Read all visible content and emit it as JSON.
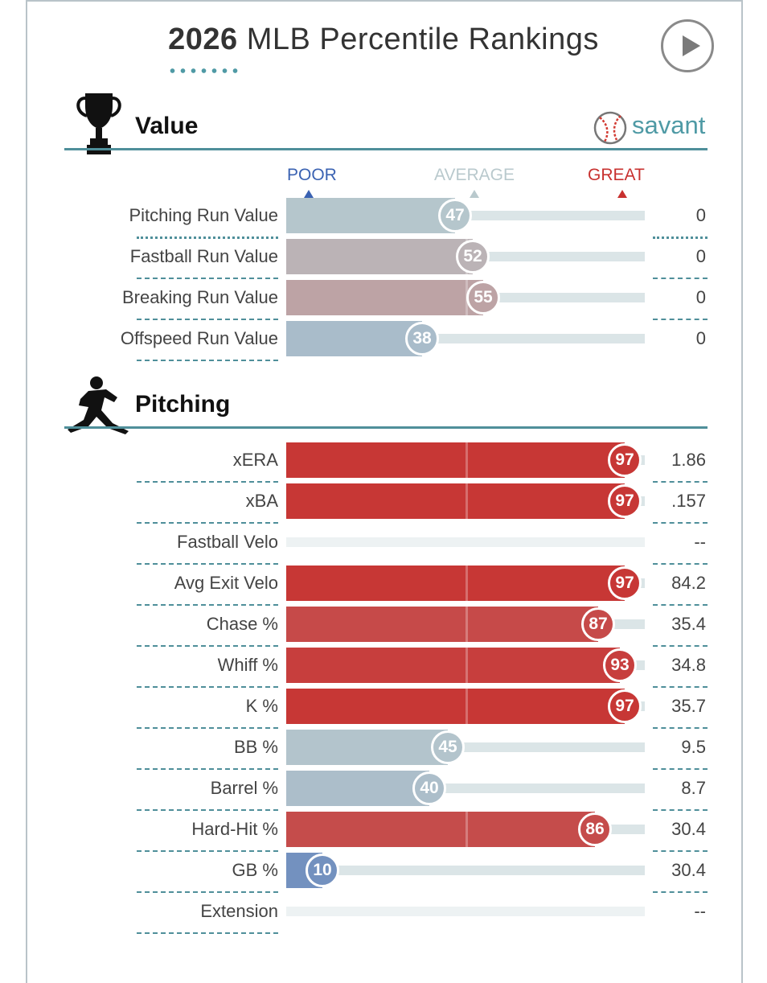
{
  "header": {
    "title_year": "2026",
    "title_rest": "MLB Percentile Rankings",
    "play_icon": "play-icon",
    "brand": "savant"
  },
  "scale": {
    "poor": "POOR",
    "average": "AVERAGE",
    "great": "GREAT"
  },
  "colors": {
    "poor": "#3b63b4",
    "average": "#b9c9cd",
    "great": "#c8312f",
    "accent": "#4f8f9a"
  },
  "chart_data": [
    {
      "type": "bar",
      "title": "Value",
      "xlim": [
        0,
        100
      ],
      "categories": [
        "Pitching Run Value",
        "Fastball Run Value",
        "Breaking Run Value",
        "Offspeed Run Value"
      ],
      "values": [
        47,
        52,
        55,
        38
      ],
      "stat_values": [
        "0",
        "0",
        "0",
        "0"
      ]
    },
    {
      "type": "bar",
      "title": "Pitching",
      "xlim": [
        0,
        100
      ],
      "categories": [
        "xERA",
        "xBA",
        "Fastball Velo",
        "Avg Exit Velo",
        "Chase %",
        "Whiff %",
        "K %",
        "BB %",
        "Barrel %",
        "Hard-Hit %",
        "GB %",
        "Extension"
      ],
      "values": [
        97,
        97,
        null,
        97,
        87,
        93,
        97,
        45,
        40,
        86,
        10,
        null
      ],
      "stat_values": [
        "1.86",
        ".157",
        "--",
        "84.2",
        "35.4",
        "34.8",
        "35.7",
        "9.5",
        "8.7",
        "30.4",
        "30.4",
        "--"
      ]
    }
  ]
}
